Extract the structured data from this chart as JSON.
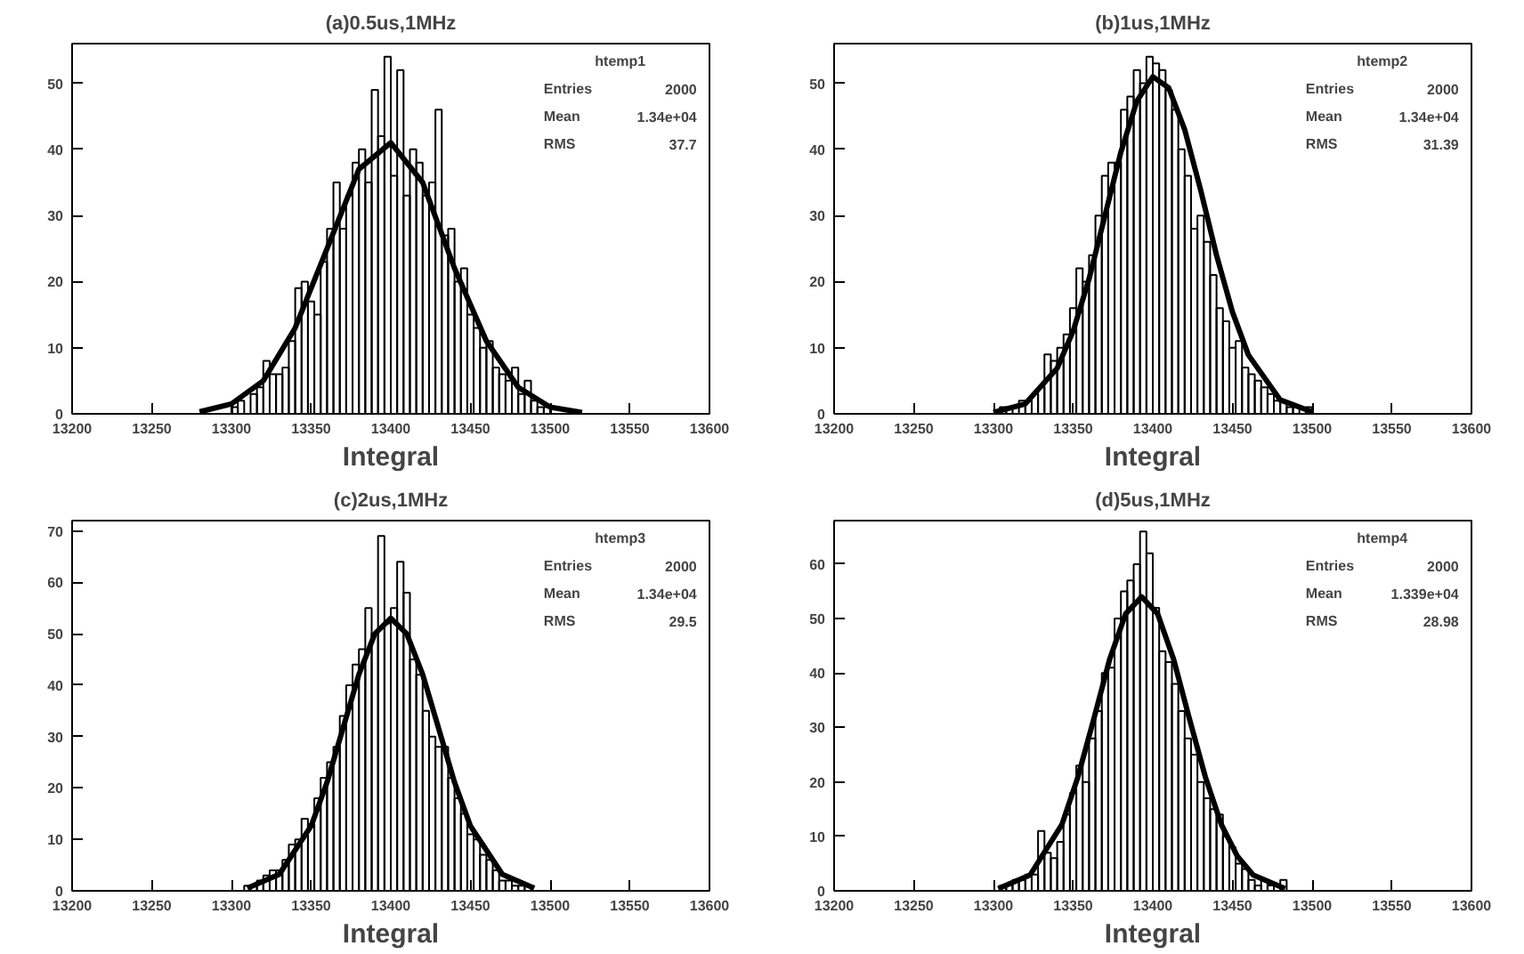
{
  "chart_data": [
    {
      "type": "histogram",
      "title": "(a)0.5us,1MHz",
      "xlabel": "Integral",
      "xlim": [
        13200,
        13600
      ],
      "xticks": [
        13200,
        13250,
        13300,
        13350,
        13400,
        13450,
        13500,
        13550,
        13600
      ],
      "ylim": [
        0,
        56
      ],
      "yticks": [
        0,
        10,
        20,
        30,
        40,
        50
      ],
      "grid": false,
      "bins": [
        13300,
        13304,
        13308,
        13312,
        13316,
        13320,
        13324,
        13328,
        13332,
        13336,
        13340,
        13344,
        13348,
        13352,
        13356,
        13360,
        13364,
        13368,
        13372,
        13376,
        13380,
        13384,
        13388,
        13392,
        13396,
        13400,
        13404,
        13408,
        13412,
        13416,
        13420,
        13424,
        13428,
        13432,
        13436,
        13440,
        13444,
        13448,
        13452,
        13456,
        13460,
        13464,
        13468,
        13472,
        13476,
        13480,
        13484,
        13488,
        13492,
        13496,
        13500
      ],
      "values": [
        1,
        2,
        0,
        3,
        4,
        8,
        6,
        6,
        7,
        11,
        19,
        20,
        17,
        15,
        23,
        28,
        35,
        28,
        33,
        38,
        40,
        35,
        49,
        42,
        54,
        36,
        52,
        33,
        40,
        38,
        33,
        35,
        46,
        27,
        28,
        20,
        22,
        15,
        13,
        10,
        11,
        7,
        6,
        5,
        7,
        3,
        5,
        2,
        1,
        1
      ],
      "series": [
        {
          "type": "line",
          "color": "#000000",
          "x": [
            13280,
            13300,
            13320,
            13340,
            13360,
            13380,
            13400,
            13420,
            13440,
            13460,
            13480,
            13500,
            13520
          ],
          "values": [
            0.3,
            1.5,
            5,
            13,
            25,
            37,
            41,
            35,
            22,
            11,
            4,
            1,
            0.2
          ]
        }
      ],
      "annotations": [
        "htemp1",
        "Entries",
        "2000",
        "Mean",
        "1.34e+04",
        "RMS",
        "37.7"
      ]
    },
    {
      "type": "histogram",
      "title": "(b)1us,1MHz",
      "xlabel": "Integral",
      "xlim": [
        13200,
        13600
      ],
      "xticks": [
        13200,
        13250,
        13300,
        13350,
        13400,
        13450,
        13500,
        13550,
        13600
      ],
      "ylim": [
        0,
        56
      ],
      "yticks": [
        0,
        10,
        20,
        30,
        40,
        50
      ],
      "grid": false,
      "bins": [
        13300,
        13304,
        13308,
        13312,
        13316,
        13320,
        13324,
        13328,
        13332,
        13336,
        13340,
        13344,
        13348,
        13352,
        13356,
        13360,
        13364,
        13368,
        13372,
        13376,
        13380,
        13384,
        13388,
        13392,
        13396,
        13400,
        13404,
        13408,
        13412,
        13416,
        13420,
        13424,
        13428,
        13432,
        13436,
        13440,
        13444,
        13448,
        13452,
        13456,
        13460,
        13464,
        13468,
        13472,
        13476,
        13480,
        13484,
        13488,
        13492,
        13496,
        13500
      ],
      "values": [
        0,
        1,
        1,
        0,
        2,
        2,
        3,
        4,
        9,
        8,
        10,
        12,
        16,
        22,
        20,
        24,
        30,
        36,
        38,
        38,
        46,
        48,
        52,
        50,
        54,
        53,
        52,
        49,
        46,
        40,
        36,
        28,
        30,
        26,
        21,
        16,
        14,
        10,
        11,
        7,
        6,
        5,
        4,
        3,
        2,
        2,
        1,
        1,
        0,
        1
      ],
      "series": [
        {
          "type": "line",
          "color": "#000000",
          "x": [
            13300,
            13320,
            13340,
            13350,
            13360,
            13370,
            13380,
            13390,
            13400,
            13410,
            13420,
            13430,
            13440,
            13450,
            13460,
            13480,
            13500
          ],
          "values": [
            0.2,
            1.5,
            6.9,
            12.5,
            20.4,
            30,
            39.6,
            47.3,
            51,
            49.3,
            43,
            33.9,
            24,
            15.4,
            8.9,
            2.1,
            0.3
          ]
        }
      ],
      "annotations": [
        "htemp2",
        "Entries",
        "2000",
        "Mean",
        "1.34e+04",
        "RMS",
        "31.39"
      ]
    },
    {
      "type": "histogram",
      "title": "(c)2us,1MHz",
      "xlabel": "Integral",
      "xlim": [
        13200,
        13600
      ],
      "xticks": [
        13200,
        13250,
        13300,
        13350,
        13400,
        13450,
        13500,
        13550,
        13600
      ],
      "ylim": [
        0,
        72
      ],
      "yticks": [
        0,
        10,
        20,
        30,
        40,
        50,
        60,
        70
      ],
      "grid": false,
      "bins": [
        13300,
        13304,
        13308,
        13312,
        13316,
        13320,
        13324,
        13328,
        13332,
        13336,
        13340,
        13344,
        13348,
        13352,
        13356,
        13360,
        13364,
        13368,
        13372,
        13376,
        13380,
        13384,
        13388,
        13392,
        13396,
        13400,
        13404,
        13408,
        13412,
        13416,
        13420,
        13424,
        13428,
        13432,
        13436,
        13440,
        13444,
        13448,
        13452,
        13456,
        13460,
        13464,
        13468,
        13472,
        13476,
        13480,
        13484,
        13488,
        13492,
        13496,
        13500
      ],
      "values": [
        0,
        0,
        1,
        1,
        2,
        3,
        4,
        4,
        6,
        9,
        10,
        14,
        13,
        18,
        22,
        25,
        28,
        34,
        40,
        44,
        47,
        55,
        50,
        69,
        52,
        55,
        64,
        58,
        45,
        42,
        35,
        30,
        28,
        28,
        22,
        18,
        15,
        11,
        10,
        7,
        6,
        4,
        2,
        2,
        1,
        1,
        1,
        0,
        0,
        0
      ],
      "series": [
        {
          "type": "line",
          "color": "#000000",
          "x": [
            13310,
            13330,
            13350,
            13360,
            13370,
            13380,
            13390,
            13400,
            13410,
            13420,
            13430,
            13440,
            13450,
            13470,
            13490
          ],
          "values": [
            0.5,
            3.2,
            12.6,
            21.1,
            31.6,
            42.1,
            50,
            53,
            50,
            42.1,
            31.6,
            21.1,
            12.6,
            3.2,
            0.5
          ]
        }
      ],
      "annotations": [
        "htemp3",
        "Entries",
        "2000",
        "Mean",
        "1.34e+04",
        "RMS",
        "29.5"
      ]
    },
    {
      "type": "histogram",
      "title": "(d)5us,1MHz",
      "xlabel": "Integral",
      "xlim": [
        13200,
        13600
      ],
      "xticks": [
        13200,
        13250,
        13300,
        13350,
        13400,
        13450,
        13500,
        13550,
        13600
      ],
      "ylim": [
        0,
        68
      ],
      "yticks": [
        0,
        10,
        20,
        30,
        40,
        50,
        60
      ],
      "grid": false,
      "bins": [
        13300,
        13304,
        13308,
        13312,
        13316,
        13320,
        13324,
        13328,
        13332,
        13336,
        13340,
        13344,
        13348,
        13352,
        13356,
        13360,
        13364,
        13368,
        13372,
        13376,
        13380,
        13384,
        13388,
        13392,
        13396,
        13400,
        13404,
        13408,
        13412,
        13416,
        13420,
        13424,
        13428,
        13432,
        13436,
        13440,
        13444,
        13448,
        13452,
        13456,
        13460,
        13464,
        13468,
        13472,
        13476,
        13480,
        13484,
        13488,
        13492,
        13496,
        13500
      ],
      "values": [
        0,
        1,
        1,
        2,
        2,
        3,
        3,
        11,
        7,
        6,
        9,
        14,
        18,
        23,
        20,
        28,
        33,
        40,
        41,
        50,
        55,
        57,
        60,
        66,
        62,
        52,
        44,
        42,
        38,
        33,
        28,
        25,
        20,
        17,
        15,
        14,
        10,
        8,
        5,
        4,
        2,
        1,
        2,
        1,
        0,
        2,
        0,
        0,
        0,
        0
      ],
      "series": [
        {
          "type": "line",
          "color": "#000000",
          "x": [
            13303,
            13323,
            13343,
            13353,
            13363,
            13373,
            13383,
            13393,
            13403,
            13413,
            13423,
            13433,
            13443,
            13453,
            13463,
            13483
          ],
          "values": [
            0.4,
            2.9,
            12.2,
            20.9,
            31.6,
            42.6,
            50.9,
            54,
            50.9,
            42.6,
            31.6,
            20.9,
            12.2,
            6.4,
            2.9,
            0.4
          ]
        }
      ],
      "annotations": [
        "htemp4",
        "Entries",
        "2000",
        "Mean",
        "1.339e+04",
        "RMS",
        "28.98"
      ]
    }
  ]
}
